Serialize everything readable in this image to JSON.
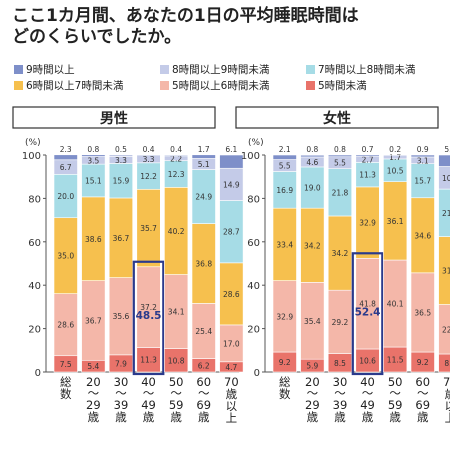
{
  "title": "ここ1カ月間、あなたの1日の平均睡眠時間は\nどのくらいでしたか。",
  "colors": {
    "9時間以上": "#7e8fc9",
    "8時間以上9時間未満": "#c4cbe8",
    "7時間以上8時間未満": "#a6dce6",
    "6時間以上7時間未満": "#f6c04e",
    "5時間以上6時間未満": "#f4b7a9",
    "5時間未満": "#e9736a"
  },
  "legend": [
    "9時間以上",
    "8時間以上9時間未満",
    "7時間以上8時間未満",
    "6時間以上7時間未満",
    "5時間以上6時間未満",
    "5時間未満"
  ],
  "chart_data": [
    {
      "type": "bar",
      "stacked": true,
      "title": "男性",
      "ylabel": "(%)",
      "ylim": [
        0,
        100
      ],
      "yticks": [
        0,
        20,
        40,
        60,
        80,
        100
      ],
      "categories": [
        "総数",
        "20〜29歳",
        "30〜39歳",
        "40〜49歳",
        "50〜59歳",
        "60〜69歳",
        "70歳以上"
      ],
      "category_labels": [
        "総\n数",
        "20\n〜\n29\n歳",
        "30\n〜\n39\n歳",
        "40\n〜\n49\n歳",
        "50\n〜\n59\n歳",
        "60\n〜\n69\n歳",
        "70\n歳\n以\n上"
      ],
      "series": [
        {
          "name": "5時間未満",
          "values": [
            7.5,
            5.4,
            7.9,
            11.3,
            10.8,
            6.2,
            4.7
          ]
        },
        {
          "name": "5時間以上6時間未満",
          "values": [
            28.6,
            36.7,
            35.6,
            37.2,
            34.1,
            25.4,
            17.0
          ]
        },
        {
          "name": "6時間以上7時間未満",
          "values": [
            35.0,
            38.6,
            36.7,
            35.7,
            40.2,
            36.8,
            28.6
          ]
        },
        {
          "name": "7時間以上8時間未満",
          "values": [
            20.0,
            15.1,
            15.9,
            12.2,
            12.3,
            24.9,
            28.7
          ]
        },
        {
          "name": "8時間以上9時間未満",
          "values": [
            6.7,
            3.5,
            3.3,
            3.3,
            2.2,
            5.1,
            14.9
          ]
        },
        {
          "name": "9時間以上",
          "values": [
            2.3,
            0.8,
            0.5,
            0.4,
            0.4,
            1.7,
            6.1
          ]
        }
      ],
      "highlight": {
        "category": "40〜49歳",
        "value": 48.5
      }
    },
    {
      "type": "bar",
      "stacked": true,
      "title": "女性",
      "ylabel": "(%)",
      "ylim": [
        0,
        100
      ],
      "yticks": [
        0,
        20,
        40,
        60,
        80,
        100
      ],
      "categories": [
        "総数",
        "20〜29歳",
        "30〜39歳",
        "40〜49歳",
        "50〜59歳",
        "60〜69歳",
        "70歳以上"
      ],
      "category_labels": [
        "総\n数",
        "20\n〜\n29\n歳",
        "30\n〜\n39\n歳",
        "40\n〜\n49\n歳",
        "50\n〜\n59\n歳",
        "60\n〜\n69\n歳",
        "70\n歳\n以\n上"
      ],
      "series": [
        {
          "name": "5時間未満",
          "values": [
            9.2,
            5.9,
            8.5,
            10.6,
            11.5,
            9.2,
            8.3
          ]
        },
        {
          "name": "5時間以上6時間未満",
          "values": [
            32.9,
            35.4,
            29.2,
            41.8,
            40.1,
            36.5,
            22.8
          ]
        },
        {
          "name": "6時間以上7時間未満",
          "values": [
            33.4,
            34.2,
            34.2,
            32.9,
            36.1,
            34.6,
            31.3
          ]
        },
        {
          "name": "7時間以上8時間未満",
          "values": [
            16.9,
            19.0,
            21.8,
            11.3,
            10.5,
            15.7,
            21.9
          ]
        },
        {
          "name": "8時間以上9時間未満",
          "values": [
            5.5,
            4.6,
            5.5,
            2.7,
            1.7,
            3.1,
            10.4
          ]
        },
        {
          "name": "9時間以上",
          "values": [
            2.1,
            0.8,
            0.8,
            0.7,
            0.2,
            0.9,
            5.3
          ]
        }
      ],
      "highlight": {
        "category": "40〜49歳",
        "value": 52.4
      }
    }
  ]
}
